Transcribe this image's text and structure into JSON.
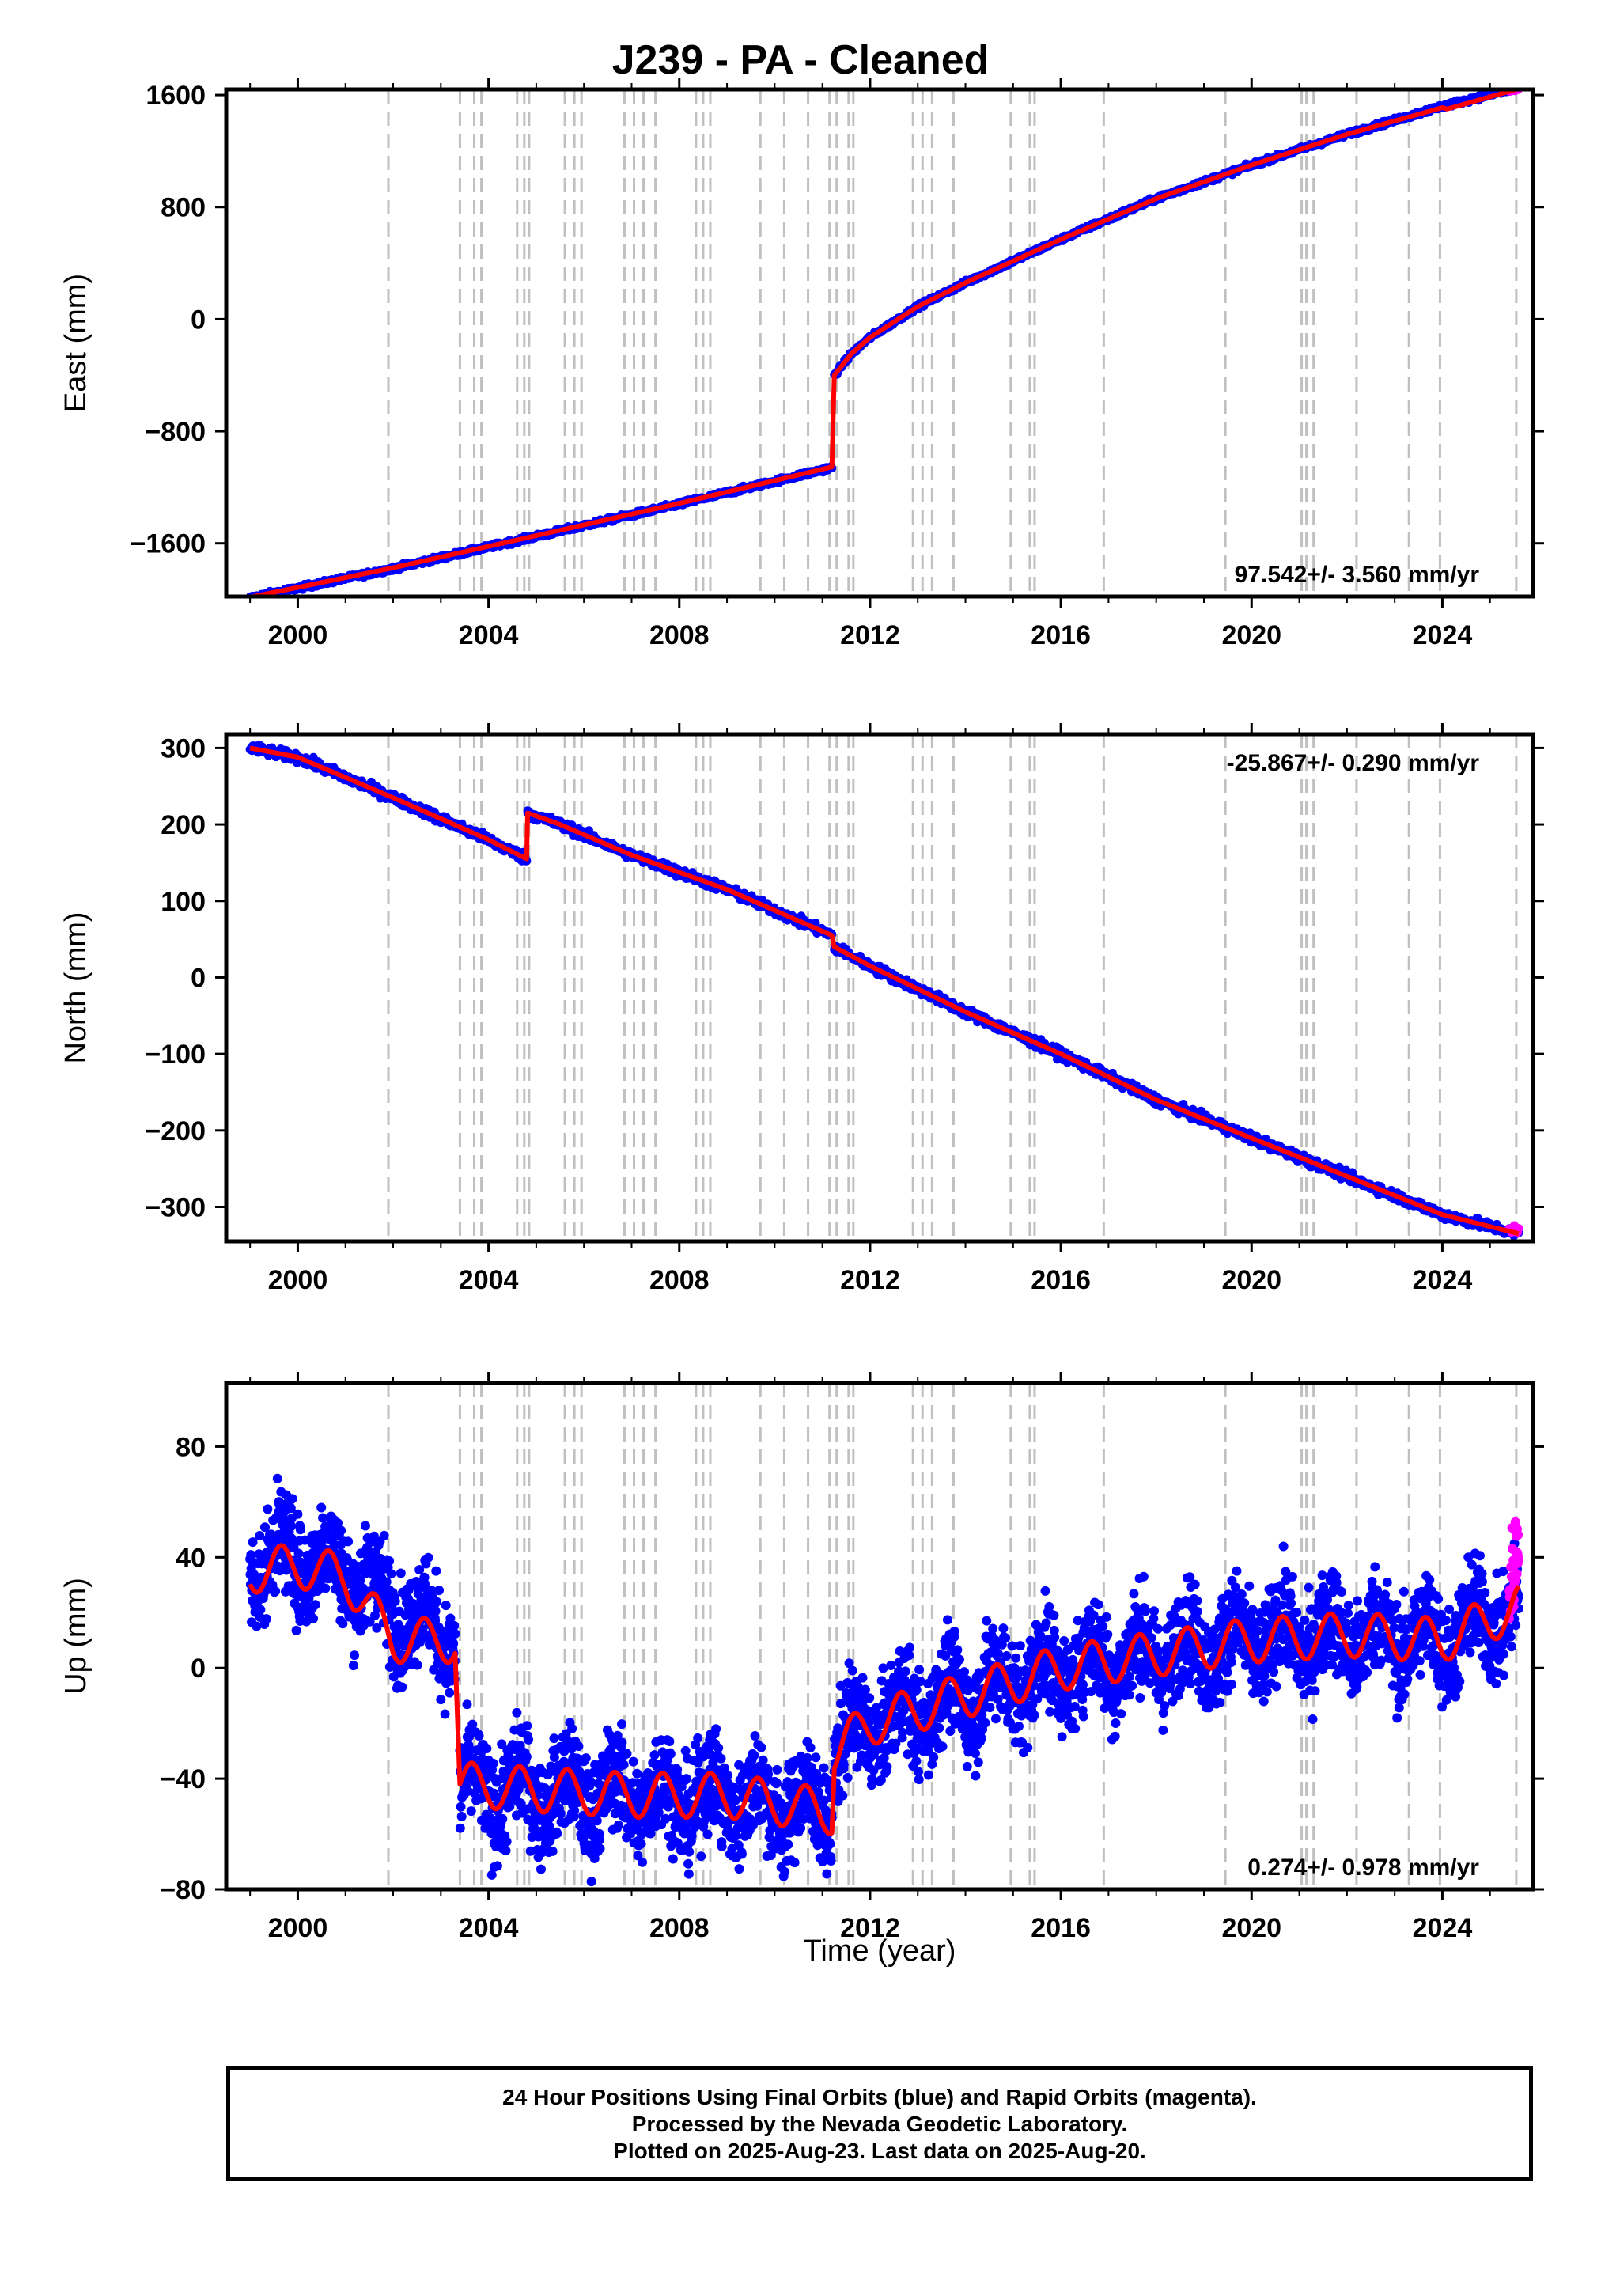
{
  "title": "J239  - PA - Cleaned",
  "x_axis_label": "Time (year)",
  "footer": {
    "line1": "24 Hour Positions Using Final Orbits (blue) and Rapid Orbits (magenta).",
    "line2": "Processed by the Nevada Geodetic Laboratory.",
    "line3": "Plotted on 2025-Aug-23. Last data on 2025-Aug-20."
  },
  "colors": {
    "final_orbits": "#0000ff",
    "rapid_orbits": "#ff00ff",
    "model": "#ff0000",
    "event_lines": "#c0c0c0"
  },
  "chart_data": [
    {
      "type": "scatter",
      "panel": "east",
      "ylabel": "East (mm)",
      "xlim": [
        1998.5,
        2025.9
      ],
      "ylim": [
        -1980,
        1640
      ],
      "yticks": [
        -1600,
        -800,
        0,
        800,
        1600
      ],
      "xticks": [
        2000,
        2004,
        2008,
        2012,
        2016,
        2020,
        2024
      ],
      "rate_annotation": "97.542+/- 3.560 mm/yr",
      "annotation_position": "bottom-right",
      "series": [
        {
          "color": "#0000ff",
          "x": [
            1999.0,
            2002.0,
            2005.0,
            2008.0,
            2011.2
          ],
          "y": [
            -1990,
            -1780,
            -1550,
            -1320,
            -1060
          ]
        },
        {
          "color": "#0000ff",
          "x": [
            2011.25,
            2011.6,
            2012.0,
            2013.0,
            2014.0,
            2016.0,
            2018.0,
            2020.0,
            2022.0,
            2024.0,
            2025.6
          ],
          "y": [
            -400,
            -250,
            -130,
            90,
            260,
            570,
            860,
            1100,
            1320,
            1520,
            1650
          ]
        },
        {
          "color": "#ff00ff",
          "x": [
            2025.4,
            2025.5,
            2025.6
          ],
          "y": [
            1630,
            1640,
            1650
          ]
        }
      ],
      "model": {
        "color": "#ff0000",
        "x": [
          1999.0,
          2002.0,
          2005.0,
          2008.0,
          2011.2,
          2011.2,
          2011.25,
          2011.6,
          2012.0,
          2013.0,
          2014.0,
          2016.0,
          2018.0,
          2020.0,
          2022.0,
          2024.0,
          2024.1,
          2025.6
        ],
        "y": [
          -1985,
          -1775,
          -1545,
          -1315,
          -1055,
          -1055,
          -400,
          -250,
          -130,
          90,
          260,
          570,
          860,
          1100,
          1320,
          1510,
          1500,
          1645
        ]
      }
    },
    {
      "type": "scatter",
      "panel": "north",
      "ylabel": "North (mm)",
      "xlim": [
        1998.5,
        2025.9
      ],
      "ylim": [
        -345,
        318
      ],
      "yticks": [
        -300,
        -200,
        -100,
        0,
        100,
        200,
        300
      ],
      "xticks": [
        2000,
        2004,
        2008,
        2012,
        2016,
        2020,
        2024
      ],
      "rate_annotation": "-25.867+/- 0.290 mm/yr",
      "annotation_position": "top-right",
      "series": [
        {
          "color": "#0000ff",
          "x": [
            1999.0,
            2000.0,
            2002.0,
            2004.0,
            2004.8
          ],
          "y": [
            300,
            288,
            235,
            180,
            155
          ]
        },
        {
          "color": "#0000ff",
          "x": [
            2004.82,
            2005.5,
            2007.0,
            2009.0,
            2011.2
          ],
          "y": [
            215,
            200,
            160,
            115,
            55
          ]
        },
        {
          "color": "#0000ff",
          "x": [
            2011.25,
            2012.0,
            2014.0,
            2016.0,
            2018.0,
            2020.0,
            2022.0,
            2024.0,
            2025.6
          ],
          "y": [
            40,
            15,
            -45,
            -100,
            -160,
            -210,
            -260,
            -310,
            -335
          ]
        },
        {
          "color": "#ff00ff",
          "x": [
            2025.4,
            2025.5,
            2025.6
          ],
          "y": [
            -330,
            -328,
            -332
          ]
        }
      ],
      "model": {
        "color": "#ff0000",
        "x": [
          1999.0,
          2000.0,
          2002.0,
          2004.0,
          2004.8,
          2004.82,
          2005.5,
          2007.0,
          2009.0,
          2011.2,
          2011.25,
          2012.0,
          2014.0,
          2016.0,
          2018.0,
          2020.0,
          2022.0,
          2024.0,
          2025.6
        ],
        "y": [
          300,
          288,
          235,
          180,
          155,
          215,
          200,
          160,
          115,
          55,
          40,
          15,
          -45,
          -100,
          -160,
          -210,
          -260,
          -310,
          -335
        ]
      }
    },
    {
      "type": "scatter",
      "panel": "up",
      "ylabel": "Up (mm)",
      "xlim": [
        1998.5,
        2025.9
      ],
      "ylim": [
        -80,
        103
      ],
      "yticks": [
        -80,
        -40,
        0,
        40,
        80
      ],
      "xticks": [
        2000,
        2004,
        2008,
        2012,
        2016,
        2020,
        2024
      ],
      "xlabel": "Time (year)",
      "rate_annotation": "0.274+/- 0.978 mm/yr",
      "annotation_position": "bottom-right",
      "series": [
        {
          "color": "#0000ff",
          "x": [
            1999.0,
            2000.0,
            2001.0,
            2002.0,
            2003.3
          ],
          "y": [
            38,
            40,
            36,
            22,
            10
          ]
        },
        {
          "color": "#0000ff",
          "x": [
            2003.4,
            2005.0,
            2007.0,
            2009.0,
            2011.2
          ],
          "y": [
            -44,
            -45,
            -46,
            -47,
            -52
          ]
        },
        {
          "color": "#0000ff",
          "x": [
            2011.25,
            2012.0,
            2014.0,
            2016.0,
            2018.0,
            2020.0,
            2022.0,
            2024.0,
            2025.6
          ],
          "y": [
            -30,
            -20,
            -10,
            0,
            5,
            10,
            12,
            10,
            22
          ]
        },
        {
          "color": "#ff00ff",
          "x": [
            2025.4,
            2025.5,
            2025.6
          ],
          "y": [
            25,
            32,
            40
          ]
        }
      ],
      "model": {
        "color": "#ff0000",
        "x": [
          1999.0,
          2000.0,
          2001.0,
          2002.0,
          2003.3,
          2003.4,
          2005.0,
          2007.0,
          2009.0,
          2011.2,
          2011.25,
          2012.0,
          2014.0,
          2016.0,
          2018.0,
          2020.0,
          2022.0,
          2024.0,
          2025.6
        ],
        "y": [
          35,
          37,
          33,
          10,
          10,
          -42,
          -44,
          -46,
          -46,
          -52,
          -30,
          -20,
          -10,
          0,
          5,
          10,
          12,
          10,
          22
        ]
      }
    }
  ],
  "event_lines": [
    2001.9,
    2003.4,
    2003.7,
    2003.85,
    2004.6,
    2004.75,
    2004.85,
    2005.6,
    2005.8,
    2005.95,
    2006.85,
    2007.05,
    2007.25,
    2007.5,
    2008.35,
    2008.5,
    2008.65,
    2009.7,
    2010.2,
    2010.7,
    2011.15,
    2011.3,
    2011.55,
    2011.65,
    2012.9,
    2013.1,
    2013.3,
    2013.75,
    2014.95,
    2015.35,
    2015.45,
    2016.9,
    2019.45,
    2021.05,
    2021.15,
    2021.3,
    2022.2,
    2023.3,
    2023.95,
    2025.55
  ]
}
